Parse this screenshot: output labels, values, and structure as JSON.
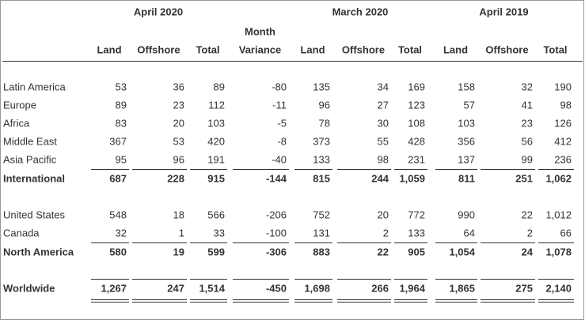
{
  "table": {
    "groups": [
      "April 2020",
      "March 2020",
      "April 2019"
    ],
    "header_top": [
      "",
      "",
      "",
      "Month",
      "",
      "",
      "",
      "",
      "",
      ""
    ],
    "columns": [
      "Land",
      "Offshore",
      "Total",
      "Variance",
      "Land",
      "Offshore",
      "Total",
      "Land",
      "Offshore",
      "Total"
    ],
    "rows": [
      {
        "label": "Latin America",
        "cells": [
          "53",
          "36",
          "89",
          "-80",
          "135",
          "34",
          "169",
          "158",
          "32",
          "190"
        ]
      },
      {
        "label": "Europe",
        "cells": [
          "89",
          "23",
          "112",
          "-11",
          "96",
          "27",
          "123",
          "57",
          "41",
          "98"
        ]
      },
      {
        "label": "Africa",
        "cells": [
          "83",
          "20",
          "103",
          "-5",
          "78",
          "30",
          "108",
          "103",
          "23",
          "126"
        ]
      },
      {
        "label": "Middle East",
        "cells": [
          "367",
          "53",
          "420",
          "-8",
          "373",
          "55",
          "428",
          "356",
          "56",
          "412"
        ]
      },
      {
        "label": "Asia Pacific",
        "cells": [
          "95",
          "96",
          "191",
          "-40",
          "133",
          "98",
          "231",
          "137",
          "99",
          "236"
        ]
      },
      {
        "label": "International",
        "bold": true,
        "cells": [
          "687",
          "228",
          "915",
          "-144",
          "815",
          "244",
          "1,059",
          "811",
          "251",
          "1,062"
        ]
      },
      {
        "label": "United States",
        "cells": [
          "548",
          "18",
          "566",
          "-206",
          "752",
          "20",
          "772",
          "990",
          "22",
          "1,012"
        ]
      },
      {
        "label": "Canada",
        "cells": [
          "32",
          "1",
          "33",
          "-100",
          "131",
          "2",
          "133",
          "64",
          "2",
          "66"
        ]
      },
      {
        "label": "North America",
        "bold": true,
        "cells": [
          "580",
          "19",
          "599",
          "-306",
          "883",
          "22",
          "905",
          "1,054",
          "24",
          "1,078"
        ]
      },
      {
        "label": "Worldwide",
        "bold": true,
        "double_underline": true,
        "cells": [
          "1,267",
          "247",
          "1,514",
          "-450",
          "1,698",
          "266",
          "1,964",
          "1,865",
          "275",
          "2,140"
        ]
      }
    ]
  }
}
